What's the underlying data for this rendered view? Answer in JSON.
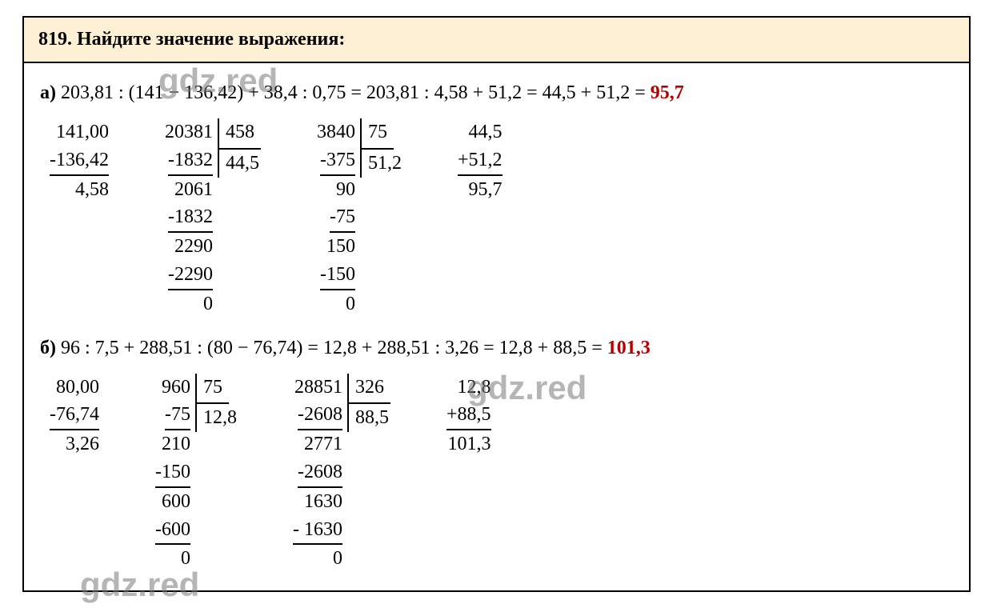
{
  "watermark": "gdz.red",
  "problem_number": "819.",
  "problem_title": "Найдите значение выражения:",
  "colors": {
    "header_bg": "#fdf0d5",
    "border": "#000000",
    "text": "#000000",
    "answer": "#b00000",
    "watermark": "rgba(120,120,120,0.55)"
  },
  "typography": {
    "body_font": "Times New Roman",
    "body_size_pt": 18,
    "header_weight": "bold"
  },
  "part_a": {
    "label": "а)",
    "expression": "203,81 : (141 − 136,42) + 38,4 : 0,75 = 203,81 : 4,58 + 51,2 = 44,5 + 51,2 =",
    "answer": "95,7",
    "sub": {
      "top": "141,00",
      "minus": "-136,42",
      "result": "4,58"
    },
    "div1": {
      "dividend": "20381",
      "divisor": "458",
      "quotient": "44,5",
      "steps": [
        "-1832",
        "2061",
        "-1832",
        "2290",
        "-2290",
        "0"
      ]
    },
    "div2": {
      "dividend": "3840",
      "divisor": "75",
      "quotient": "51,2",
      "steps": [
        "-375",
        "90",
        "-75",
        "150",
        "-150",
        "0"
      ]
    },
    "add": {
      "top": "44,5",
      "plus": "+51,2",
      "result": "95,7"
    }
  },
  "part_b": {
    "label": "б)",
    "expression": "96 : 7,5 + 288,51 : (80 − 76,74) = 12,8 + 288,51 : 3,26 = 12,8 + 88,5 =",
    "answer": "101,3",
    "sub": {
      "top": "80,00",
      "minus": "-76,74",
      "result": "3,26"
    },
    "div1": {
      "dividend": "960",
      "divisor": "75",
      "quotient": "12,8",
      "steps": [
        "-75",
        "210",
        "-150",
        "600",
        "-600",
        "0"
      ]
    },
    "div2": {
      "dividend": "28851",
      "divisor": "326",
      "quotient": "88,5",
      "steps": [
        "-2608",
        "2771",
        "-2608",
        "1630",
        "- 1630",
        "0"
      ]
    },
    "add": {
      "top": "12,8",
      "plus": "+88,5",
      "result": "101,3"
    }
  }
}
